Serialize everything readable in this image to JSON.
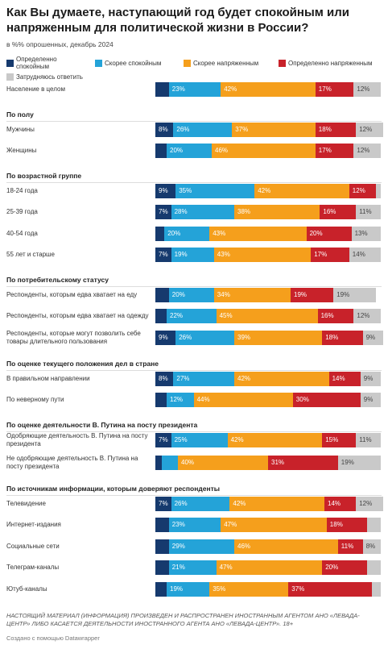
{
  "chart_data": {
    "type": "stacked-bar",
    "title": "Как Вы думаете, наступающий год будет спокойным или напряженным для политической жизни в России?",
    "subtitle": "в %% опрошенных, декабрь 2024",
    "xlim": [
      0,
      100
    ],
    "series": [
      {
        "name": "Определенно спокойным",
        "color": "#163a6e"
      },
      {
        "name": "Скорее спокойным",
        "color": "#24a3d8"
      },
      {
        "name": "Скорее напряженным",
        "color": "#f59f1c"
      },
      {
        "name": "Определенно напряженным",
        "color": "#c8222a"
      },
      {
        "name": "Затрудняюсь ответить",
        "color": "#c9c9c9"
      }
    ],
    "groups": [
      {
        "rows": [
          {
            "label": "Население в целом",
            "values": [
              6,
              23,
              42,
              17,
              12
            ],
            "value_labels": [
              null,
              "23%",
              "42%",
              "17%",
              "12%"
            ]
          }
        ]
      },
      {
        "title": "По полу",
        "rows": [
          {
            "label": "Мужчины",
            "values": [
              8,
              26,
              37,
              18,
              12
            ],
            "value_labels": [
              "8%",
              "26%",
              "37%",
              "18%",
              "12%"
            ]
          },
          {
            "label": "Женщины",
            "values": [
              5,
              20,
              46,
              17,
              12
            ],
            "value_labels": [
              null,
              "20%",
              "46%",
              "17%",
              "12%"
            ]
          }
        ]
      },
      {
        "title": "По возрастной группе",
        "rows": [
          {
            "label": "18-24 года",
            "values": [
              9,
              35,
              42,
              12,
              2
            ],
            "value_labels": [
              "9%",
              "35%",
              "42%",
              "12%",
              null
            ]
          },
          {
            "label": "25-39 года",
            "values": [
              7,
              28,
              38,
              16,
              11
            ],
            "value_labels": [
              "7%",
              "28%",
              "38%",
              "16%",
              "11%"
            ]
          },
          {
            "label": "40-54 года",
            "values": [
              4,
              20,
              43,
              20,
              13
            ],
            "value_labels": [
              null,
              "20%",
              "43%",
              "20%",
              "13%"
            ]
          },
          {
            "label": "55 лет и старше",
            "values": [
              7,
              19,
              43,
              17,
              14
            ],
            "value_labels": [
              "7%",
              "19%",
              "43%",
              "17%",
              "14%"
            ]
          }
        ]
      },
      {
        "title": "По потребительскому статусу",
        "rows": [
          {
            "label": "Респонденты, которым едва хватает на еду",
            "values": [
              6,
              20,
              34,
              19,
              19
            ],
            "value_labels": [
              null,
              "20%",
              "34%",
              "19%",
              "19%"
            ]
          },
          {
            "label": "Респонденты, которым едва хватает на одежду",
            "values": [
              5,
              22,
              45,
              16,
              12
            ],
            "value_labels": [
              null,
              "22%",
              "45%",
              "16%",
              "12%"
            ]
          },
          {
            "label": "Респонденты, которые могут позволить себе товары длительного пользования",
            "values": [
              9,
              26,
              39,
              18,
              9
            ],
            "value_labels": [
              "9%",
              "26%",
              "39%",
              "18%",
              "9%"
            ]
          }
        ]
      },
      {
        "title": "По оценке текущего положения дел в стране",
        "rows": [
          {
            "label": "В правильном направлении",
            "values": [
              8,
              27,
              42,
              14,
              9
            ],
            "value_labels": [
              "8%",
              "27%",
              "42%",
              "14%",
              "9%"
            ]
          },
          {
            "label": "По неверному пути",
            "values": [
              5,
              12,
              44,
              30,
              9
            ],
            "value_labels": [
              null,
              "12%",
              "44%",
              "30%",
              "9%"
            ]
          }
        ]
      },
      {
        "title": "По оценке деятельности В. Путина на посту президента",
        "rows": [
          {
            "label": "Одобряющие деятельность В. Путина на посту президента",
            "values": [
              7,
              25,
              42,
              15,
              11
            ],
            "value_labels": [
              "7%",
              "25%",
              "42%",
              "15%",
              "11%"
            ]
          },
          {
            "label": "Не одобряющие деятельность В. Путина на посту президента",
            "values": [
              3,
              7,
              40,
              31,
              19
            ],
            "value_labels": [
              null,
              null,
              "40%",
              "31%",
              "19%"
            ]
          }
        ]
      },
      {
        "title": "По источникам информации, которым доверяют респонденты",
        "rows": [
          {
            "label": "Телевидение",
            "values": [
              7,
              26,
              42,
              14,
              12
            ],
            "value_labels": [
              "7%",
              "26%",
              "42%",
              "14%",
              "12%"
            ]
          },
          {
            "label": "Интернет-издания",
            "values": [
              6,
              23,
              47,
              18,
              6
            ],
            "value_labels": [
              null,
              "23%",
              "47%",
              "18%",
              null
            ]
          },
          {
            "label": "Социальные сети",
            "values": [
              6,
              29,
              46,
              11,
              8
            ],
            "value_labels": [
              null,
              "29%",
              "46%",
              "11%",
              "8%"
            ]
          },
          {
            "label": "Телеграм-каналы",
            "values": [
              6,
              21,
              47,
              20,
              6
            ],
            "value_labels": [
              null,
              "21%",
              "47%",
              "20%",
              null
            ]
          },
          {
            "label": "Ютуб-каналы",
            "values": [
              5,
              19,
              35,
              37,
              4
            ],
            "value_labels": [
              null,
              "19%",
              "35%",
              "37%",
              null
            ]
          }
        ]
      }
    ],
    "footer": "НАСТОЯЩИЙ МАТЕРИАЛ (ИНФОРМАЦИЯ) ПРОИЗВЕДЕН И РАСПРОСТРАНЕН ИНОСТРАННЫМ АГЕНТОМ АНО «ЛЕВАДА-ЦЕНТР» ЛИБО КАСАЕТСЯ ДЕЯТЕЛЬНОСТИ ИНОСТРАННОГО АГЕНТА АНО «ЛЕВАДА-ЦЕНТР». 18+",
    "credit": "Создано с помощью Datawrapper"
  }
}
